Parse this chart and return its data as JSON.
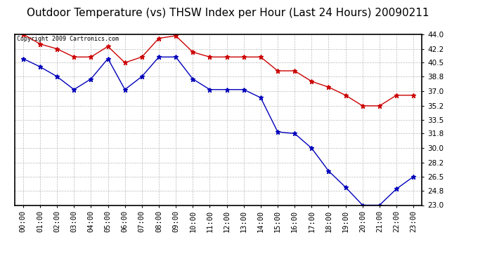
{
  "title": "Outdoor Temperature (vs) THSW Index per Hour (Last 24 Hours) 20090211",
  "copyright_text": "Copyright 2009 Cartronics.com",
  "hours": [
    "00:00",
    "01:00",
    "02:00",
    "03:00",
    "04:00",
    "05:00",
    "06:00",
    "07:00",
    "08:00",
    "09:00",
    "10:00",
    "11:00",
    "12:00",
    "13:00",
    "14:00",
    "15:00",
    "16:00",
    "17:00",
    "18:00",
    "19:00",
    "20:00",
    "21:00",
    "22:00",
    "23:00"
  ],
  "temp_blue": [
    41.0,
    40.0,
    38.8,
    37.2,
    38.5,
    41.0,
    37.2,
    38.8,
    41.2,
    41.2,
    38.5,
    37.2,
    37.2,
    37.2,
    36.2,
    32.0,
    31.8,
    30.0,
    27.2,
    25.2,
    23.0,
    23.0,
    25.0,
    26.5
  ],
  "thsw_red": [
    44.0,
    42.8,
    42.2,
    41.2,
    41.2,
    42.5,
    40.5,
    41.2,
    43.5,
    43.8,
    41.8,
    41.2,
    41.2,
    41.2,
    41.2,
    39.5,
    39.5,
    38.2,
    37.5,
    36.5,
    35.2,
    35.2,
    36.5,
    36.5
  ],
  "ylim_min": 23.0,
  "ylim_max": 44.0,
  "yticks": [
    23.0,
    24.8,
    26.5,
    28.2,
    30.0,
    31.8,
    33.5,
    35.2,
    37.0,
    38.8,
    40.5,
    42.2,
    44.0
  ],
  "bg_color": "#ffffff",
  "plot_bg_color": "#ffffff",
  "grid_color": "#bbbbbb",
  "blue_color": "#0000bb",
  "red_color": "#cc0000",
  "title_fontsize": 11,
  "tick_fontsize": 7.5,
  "copyright_fontsize": 6
}
